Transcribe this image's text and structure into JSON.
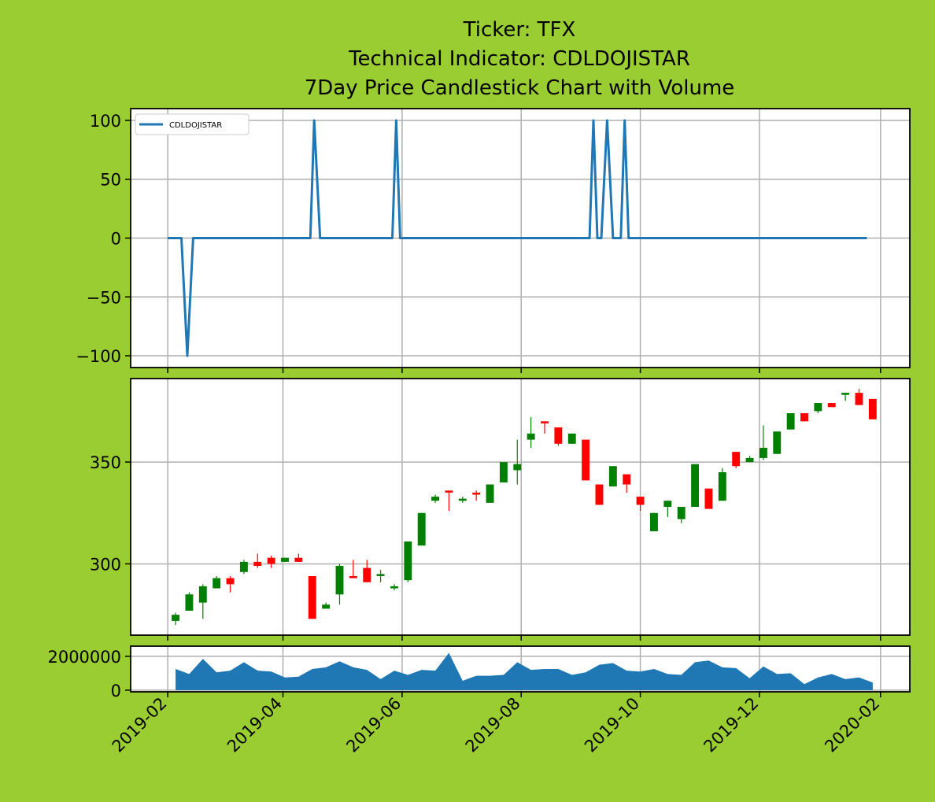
{
  "title_lines": [
    "Ticker: TFX",
    "Technical Indicator: CDLDOJISTAR",
    "7Day Price Candlestick Chart with Volume"
  ],
  "colors": {
    "background": "#9acd32",
    "line": "#1f77b4",
    "volume_fill": "#1f77b4",
    "up": "#008000",
    "down": "#ff0000",
    "grid": "#b0b0b0"
  },
  "x_axis": {
    "tick_labels": [
      "2019-02",
      "2019-04",
      "2019-06",
      "2019-08",
      "2019-10",
      "2019-12",
      "2020-02"
    ],
    "tick_dates": [
      "2019-02-01",
      "2019-04-01",
      "2019-06-01",
      "2019-08-01",
      "2019-10-01",
      "2019-12-01",
      "2020-02-01"
    ],
    "range": [
      "2019-01-13",
      "2020-02-16"
    ]
  },
  "chart_data": [
    {
      "type": "line",
      "panel": "indicator",
      "legend": {
        "entries": [
          "CDLDOJISTAR"
        ],
        "placement": "top-left"
      },
      "grid": true,
      "ylim": [
        -110,
        110
      ],
      "y_ticks": [
        100,
        50,
        0,
        -50,
        -100
      ],
      "y_tick_labels": [
        "100",
        "50",
        "0",
        "−50",
        "−100"
      ],
      "series": [
        {
          "name": "CDLDOJISTAR",
          "points": [
            [
              "2019-02-01",
              0
            ],
            [
              "2019-02-08",
              0
            ],
            [
              "2019-02-11",
              -100
            ],
            [
              "2019-02-14",
              0
            ],
            [
              "2019-04-15",
              0
            ],
            [
              "2019-04-17",
              100
            ],
            [
              "2019-04-20",
              0
            ],
            [
              "2019-05-27",
              0
            ],
            [
              "2019-05-29",
              100
            ],
            [
              "2019-05-31",
              0
            ],
            [
              "2019-09-05",
              0
            ],
            [
              "2019-09-07",
              100
            ],
            [
              "2019-09-09",
              0
            ],
            [
              "2019-09-11",
              0
            ],
            [
              "2019-09-14",
              100
            ],
            [
              "2019-09-17",
              0
            ],
            [
              "2019-09-21",
              0
            ],
            [
              "2019-09-23",
              100
            ],
            [
              "2019-09-25",
              0
            ],
            [
              "2020-01-25",
              0
            ]
          ]
        }
      ]
    },
    {
      "type": "candlestick",
      "panel": "price",
      "grid": true,
      "ylim": [
        265,
        391
      ],
      "y_ticks": [
        300,
        350
      ],
      "y_tick_labels": [
        "300",
        "350"
      ],
      "candles": [
        {
          "date": "2019-02-05",
          "open": 272,
          "high": 276,
          "low": 270,
          "close": 275,
          "dir": "up"
        },
        {
          "date": "2019-02-12",
          "open": 277,
          "high": 286,
          "low": 277,
          "close": 285,
          "dir": "up"
        },
        {
          "date": "2019-02-19",
          "open": 281,
          "high": 290,
          "low": 273,
          "close": 289,
          "dir": "up"
        },
        {
          "date": "2019-02-26",
          "open": 288,
          "high": 294,
          "low": 288,
          "close": 293,
          "dir": "up"
        },
        {
          "date": "2019-03-05",
          "open": 293,
          "high": 294,
          "low": 286,
          "close": 290,
          "dir": "down"
        },
        {
          "date": "2019-03-12",
          "open": 296,
          "high": 302,
          "low": 295,
          "close": 301,
          "dir": "up"
        },
        {
          "date": "2019-03-19",
          "open": 301,
          "high": 305,
          "low": 298,
          "close": 299,
          "dir": "down"
        },
        {
          "date": "2019-03-26",
          "open": 303,
          "high": 304,
          "low": 298,
          "close": 300,
          "dir": "down"
        },
        {
          "date": "2019-04-02",
          "open": 301,
          "high": 303,
          "low": 301,
          "close": 303,
          "dir": "up"
        },
        {
          "date": "2019-04-09",
          "open": 303,
          "high": 305,
          "low": 301,
          "close": 301,
          "dir": "down"
        },
        {
          "date": "2019-04-16",
          "open": 294,
          "high": 294,
          "low": 273,
          "close": 273,
          "dir": "down"
        },
        {
          "date": "2019-04-23",
          "open": 278,
          "high": 281,
          "low": 278,
          "close": 280,
          "dir": "up"
        },
        {
          "date": "2019-04-30",
          "open": 285,
          "high": 300,
          "low": 280,
          "close": 299,
          "dir": "up"
        },
        {
          "date": "2019-05-07",
          "open": 294,
          "high": 302,
          "low": 293,
          "close": 293,
          "dir": "down"
        },
        {
          "date": "2019-05-14",
          "open": 298,
          "high": 302,
          "low": 291,
          "close": 291,
          "dir": "down"
        },
        {
          "date": "2019-05-21",
          "open": 294,
          "high": 297,
          "low": 291,
          "close": 295,
          "dir": "up"
        },
        {
          "date": "2019-05-28",
          "open": 288,
          "high": 290,
          "low": 287,
          "close": 289,
          "dir": "up"
        },
        {
          "date": "2019-06-04",
          "open": 292,
          "high": 311,
          "low": 291,
          "close": 311,
          "dir": "up"
        },
        {
          "date": "2019-06-11",
          "open": 309,
          "high": 325,
          "low": 309,
          "close": 325,
          "dir": "up"
        },
        {
          "date": "2019-06-18",
          "open": 331,
          "high": 334,
          "low": 330,
          "close": 333,
          "dir": "up"
        },
        {
          "date": "2019-06-25",
          "open": 336,
          "high": 336,
          "low": 326,
          "close": 335,
          "dir": "down"
        },
        {
          "date": "2019-07-02",
          "open": 331,
          "high": 333,
          "low": 330,
          "close": 332,
          "dir": "up"
        },
        {
          "date": "2019-07-09",
          "open": 335,
          "high": 336,
          "low": 331,
          "close": 334,
          "dir": "down"
        },
        {
          "date": "2019-07-16",
          "open": 330,
          "high": 339,
          "low": 330,
          "close": 339,
          "dir": "up"
        },
        {
          "date": "2019-07-23",
          "open": 340,
          "high": 350,
          "low": 340,
          "close": 350,
          "dir": "up"
        },
        {
          "date": "2019-07-30",
          "open": 346,
          "high": 361,
          "low": 339,
          "close": 349,
          "dir": "up"
        },
        {
          "date": "2019-08-06",
          "open": 361,
          "high": 372,
          "low": 357,
          "close": 364,
          "dir": "up"
        },
        {
          "date": "2019-08-13",
          "open": 370,
          "high": 370,
          "low": 364,
          "close": 369,
          "dir": "down"
        },
        {
          "date": "2019-08-20",
          "open": 367,
          "high": 367,
          "low": 358,
          "close": 359,
          "dir": "down"
        },
        {
          "date": "2019-08-27",
          "open": 359,
          "high": 364,
          "low": 359,
          "close": 364,
          "dir": "up"
        },
        {
          "date": "2019-09-03",
          "open": 361,
          "high": 361,
          "low": 341,
          "close": 341,
          "dir": "down"
        },
        {
          "date": "2019-09-10",
          "open": 339,
          "high": 339,
          "low": 329,
          "close": 329,
          "dir": "down"
        },
        {
          "date": "2019-09-17",
          "open": 338,
          "high": 348,
          "low": 338,
          "close": 348,
          "dir": "up"
        },
        {
          "date": "2019-09-24",
          "open": 344,
          "high": 344,
          "low": 335,
          "close": 339,
          "dir": "down"
        },
        {
          "date": "2019-10-01",
          "open": 333,
          "high": 333,
          "low": 326,
          "close": 329,
          "dir": "down"
        },
        {
          "date": "2019-10-08",
          "open": 316,
          "high": 325,
          "low": 316,
          "close": 325,
          "dir": "up"
        },
        {
          "date": "2019-10-15",
          "open": 328,
          "high": 331,
          "low": 323,
          "close": 331,
          "dir": "up"
        },
        {
          "date": "2019-10-22",
          "open": 322,
          "high": 328,
          "low": 320,
          "close": 328,
          "dir": "up"
        },
        {
          "date": "2019-10-29",
          "open": 328,
          "high": 349,
          "low": 328,
          "close": 349,
          "dir": "up"
        },
        {
          "date": "2019-11-05",
          "open": 337,
          "high": 337,
          "low": 327,
          "close": 327,
          "dir": "down"
        },
        {
          "date": "2019-11-12",
          "open": 331,
          "high": 347,
          "low": 331,
          "close": 345,
          "dir": "up"
        },
        {
          "date": "2019-11-19",
          "open": 355,
          "high": 355,
          "low": 347,
          "close": 348,
          "dir": "down"
        },
        {
          "date": "2019-11-26",
          "open": 350,
          "high": 353,
          "low": 350,
          "close": 352,
          "dir": "up"
        },
        {
          "date": "2019-12-03",
          "open": 352,
          "high": 368,
          "low": 351,
          "close": 357,
          "dir": "up"
        },
        {
          "date": "2019-12-10",
          "open": 354,
          "high": 365,
          "low": 354,
          "close": 365,
          "dir": "up"
        },
        {
          "date": "2019-12-17",
          "open": 366,
          "high": 374,
          "low": 366,
          "close": 374,
          "dir": "up"
        },
        {
          "date": "2019-12-24",
          "open": 374,
          "high": 374,
          "low": 370,
          "close": 370,
          "dir": "down"
        },
        {
          "date": "2019-12-31",
          "open": 375,
          "high": 379,
          "low": 374,
          "close": 379,
          "dir": "up"
        },
        {
          "date": "2020-01-07",
          "open": 379,
          "high": 379,
          "low": 377,
          "close": 377,
          "dir": "down"
        },
        {
          "date": "2020-01-14",
          "open": 383,
          "high": 384,
          "low": 380,
          "close": 384,
          "dir": "up"
        },
        {
          "date": "2020-01-21",
          "open": 384,
          "high": 386,
          "low": 378,
          "close": 378,
          "dir": "down"
        },
        {
          "date": "2020-01-28",
          "open": 381,
          "high": 381,
          "low": 371,
          "close": 371,
          "dir": "down"
        }
      ]
    },
    {
      "type": "area",
      "panel": "volume",
      "grid": true,
      "ylim": [
        -100000,
        2600000
      ],
      "y_ticks": [
        2000000,
        0
      ],
      "y_tick_labels": [
        "2000000",
        "0"
      ],
      "points": [
        [
          "2019-02-05",
          1250000
        ],
        [
          "2019-02-12",
          950000
        ],
        [
          "2019-02-19",
          1850000
        ],
        [
          "2019-02-26",
          1050000
        ],
        [
          "2019-03-05",
          1150000
        ],
        [
          "2019-03-12",
          1650000
        ],
        [
          "2019-03-19",
          1150000
        ],
        [
          "2019-03-26",
          1100000
        ],
        [
          "2019-04-02",
          750000
        ],
        [
          "2019-04-09",
          800000
        ],
        [
          "2019-04-16",
          1250000
        ],
        [
          "2019-04-23",
          1350000
        ],
        [
          "2019-04-30",
          1700000
        ],
        [
          "2019-05-07",
          1350000
        ],
        [
          "2019-05-14",
          1200000
        ],
        [
          "2019-05-21",
          650000
        ],
        [
          "2019-05-28",
          1150000
        ],
        [
          "2019-06-04",
          900000
        ],
        [
          "2019-06-11",
          1200000
        ],
        [
          "2019-06-18",
          1150000
        ],
        [
          "2019-06-25",
          2200000
        ],
        [
          "2019-07-02",
          550000
        ],
        [
          "2019-07-09",
          850000
        ],
        [
          "2019-07-16",
          850000
        ],
        [
          "2019-07-23",
          900000
        ],
        [
          "2019-07-30",
          1650000
        ],
        [
          "2019-08-06",
          1200000
        ],
        [
          "2019-08-13",
          1250000
        ],
        [
          "2019-08-20",
          1250000
        ],
        [
          "2019-08-27",
          900000
        ],
        [
          "2019-09-03",
          1050000
        ],
        [
          "2019-09-10",
          1500000
        ],
        [
          "2019-09-17",
          1600000
        ],
        [
          "2019-09-24",
          1150000
        ],
        [
          "2019-10-01",
          1100000
        ],
        [
          "2019-10-08",
          1250000
        ],
        [
          "2019-10-15",
          950000
        ],
        [
          "2019-10-22",
          900000
        ],
        [
          "2019-10-29",
          1650000
        ],
        [
          "2019-11-05",
          1750000
        ],
        [
          "2019-11-12",
          1350000
        ],
        [
          "2019-11-19",
          1300000
        ],
        [
          "2019-11-26",
          700000
        ],
        [
          "2019-12-03",
          1400000
        ],
        [
          "2019-12-10",
          950000
        ],
        [
          "2019-12-17",
          1000000
        ],
        [
          "2019-12-24",
          350000
        ],
        [
          "2019-12-31",
          750000
        ],
        [
          "2020-01-07",
          950000
        ],
        [
          "2020-01-14",
          650000
        ],
        [
          "2020-01-21",
          750000
        ],
        [
          "2020-01-28",
          450000
        ]
      ]
    }
  ]
}
